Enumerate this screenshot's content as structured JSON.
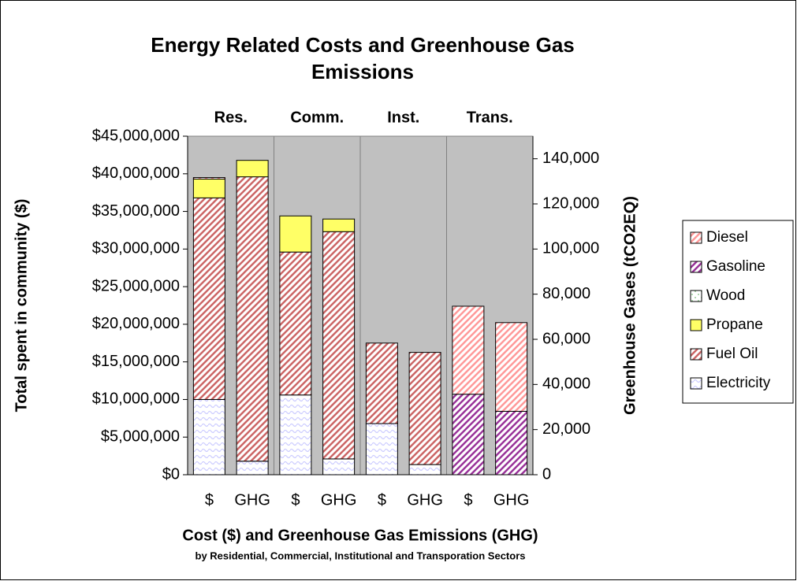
{
  "chart_data": {
    "type": "stacked_bar",
    "title": "Energy Related Costs and Greenhouse Gas Emissions",
    "xlabel": "Cost ($) and Greenhouse Gas Emissions (GHG)",
    "xsublabel": "by Residential, Commercial, Institutional and Transporation Sectors",
    "ylabel": "Total spent in community ($)",
    "y2label": "Greenhouse Gases (tCO2EQ)",
    "groups": [
      "Res.",
      "Comm.",
      "Inst.",
      "Trans."
    ],
    "categories": [
      "$",
      "GHG",
      "$",
      "GHG",
      "$",
      "GHG",
      "$",
      "GHG"
    ],
    "category_axes": [
      "y",
      "y2",
      "y",
      "y2",
      "y",
      "y2",
      "y",
      "y2"
    ],
    "series": [
      {
        "name": "Electricity",
        "color": "#ccccff",
        "pattern": "wave",
        "values": [
          10000000,
          6000,
          10600000,
          7000,
          6800000,
          4500,
          0,
          0
        ]
      },
      {
        "name": "Fuel Oil",
        "color": "#cc6666",
        "pattern": "diagonal",
        "values": [
          26800000,
          126000,
          19000000,
          100700,
          10700000,
          49700,
          0,
          0
        ]
      },
      {
        "name": "Propane",
        "color": "#ffff66",
        "pattern": "solid",
        "values": [
          2500000,
          7300,
          4800000,
          5600,
          0,
          0,
          0,
          0
        ]
      },
      {
        "name": "Wood",
        "color": "#99cc99",
        "pattern": "dots",
        "values": [
          0,
          0,
          0,
          0,
          0,
          0,
          0,
          0
        ]
      },
      {
        "name": "Gasoline",
        "color": "#993399",
        "pattern": "diagonal",
        "values": [
          0,
          0,
          0,
          0,
          0,
          0,
          10700000,
          28100
        ]
      },
      {
        "name": "Diesel",
        "color": "#ff9999",
        "pattern": "diagonal",
        "values": [
          200000,
          0,
          0,
          0,
          0,
          0,
          11700000,
          39300
        ]
      }
    ],
    "ylim": [
      0,
      45000000
    ],
    "yticks": [
      {
        "value": 0,
        "label": "$0"
      },
      {
        "value": 5000000,
        "label": "$5,000,000"
      },
      {
        "value": 10000000,
        "label": "$10,000,000"
      },
      {
        "value": 15000000,
        "label": "$15,000,000"
      },
      {
        "value": 20000000,
        "label": "$20,000,000"
      },
      {
        "value": 25000000,
        "label": "$25,000,000"
      },
      {
        "value": 30000000,
        "label": "$30,000,000"
      },
      {
        "value": 35000000,
        "label": "$35,000,000"
      },
      {
        "value": 40000000,
        "label": "$40,000,000"
      },
      {
        "value": 45000000,
        "label": "$45,000,000"
      }
    ],
    "y2lim": [
      0,
      150000
    ],
    "y2ticks": [
      0,
      {
        "value": 20000,
        "label": "20,000"
      },
      {
        "value": 40000,
        "label": "40,000"
      },
      {
        "value": 60000,
        "label": "60,000"
      },
      {
        "value": 80000,
        "label": "80,000"
      },
      {
        "value": 100000,
        "label": "100,000"
      },
      {
        "value": 120000,
        "label": "120,000"
      },
      {
        "value": 140000,
        "label": "140,000"
      }
    ],
    "legend": "right",
    "plot_background": "#c0c0c0"
  }
}
